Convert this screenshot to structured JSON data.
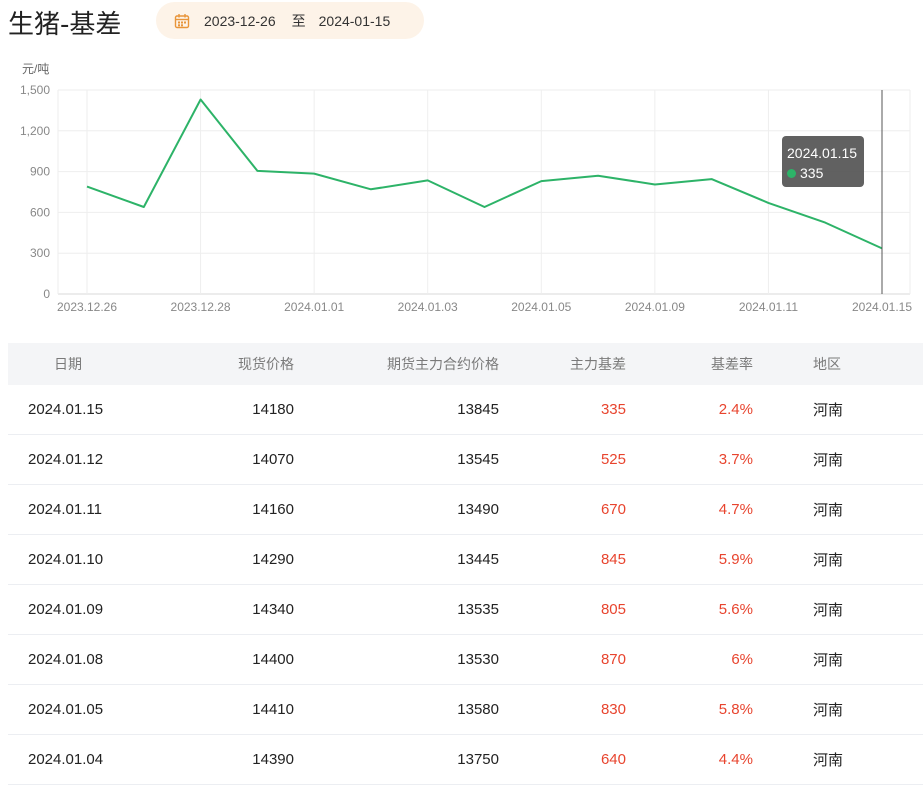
{
  "page_title": "生猪-基差",
  "date_range": {
    "start": "2023-12-26",
    "separator": "至",
    "end": "2024-01-15",
    "icon": "calendar-icon",
    "accent": "#e8953a"
  },
  "chart_data": {
    "type": "line",
    "ylabel": "元/吨",
    "ylim": [
      0,
      1500
    ],
    "yticks": [
      "0",
      "300",
      "600",
      "900",
      "1,200",
      "1,500"
    ],
    "x": [
      "2023.12.26",
      "2023.12.27",
      "2023.12.28",
      "2023.12.29",
      "2024.01.01",
      "2024.01.02",
      "2024.01.03",
      "2024.01.04",
      "2024.01.05",
      "2024.01.08",
      "2024.01.09",
      "2024.01.10",
      "2024.01.11",
      "2024.01.12",
      "2024.01.15"
    ],
    "xtick_labels": [
      "2023.12.26",
      "2023.12.28",
      "2024.01.01",
      "2024.01.03",
      "2024.01.05",
      "2024.01.09",
      "2024.01.11",
      "2024.01.15"
    ],
    "series": [
      {
        "values": [
          790,
          640,
          1430,
          905,
          885,
          770,
          835,
          640,
          830,
          870,
          805,
          845,
          670,
          525,
          335
        ],
        "color": "#2db368"
      }
    ],
    "grid": true,
    "tooltip": {
      "date": "2024.01.15",
      "value": "335"
    }
  },
  "table": {
    "headers": [
      "日期",
      "现货价格",
      "期货主力合约价格",
      "主力基差",
      "基差率",
      "地区"
    ],
    "rows": [
      [
        "2024.01.15",
        "14180",
        "13845",
        "335",
        "2.4%",
        "河南"
      ],
      [
        "2024.01.12",
        "14070",
        "13545",
        "525",
        "3.7%",
        "河南"
      ],
      [
        "2024.01.11",
        "14160",
        "13490",
        "670",
        "4.7%",
        "河南"
      ],
      [
        "2024.01.10",
        "14290",
        "13445",
        "845",
        "5.9%",
        "河南"
      ],
      [
        "2024.01.09",
        "14340",
        "13535",
        "805",
        "5.6%",
        "河南"
      ],
      [
        "2024.01.08",
        "14400",
        "13530",
        "870",
        "6%",
        "河南"
      ],
      [
        "2024.01.05",
        "14410",
        "13580",
        "830",
        "5.8%",
        "河南"
      ],
      [
        "2024.01.04",
        "14390",
        "13750",
        "640",
        "4.4%",
        "河南"
      ]
    ],
    "highlight_color": "#e8442e"
  }
}
